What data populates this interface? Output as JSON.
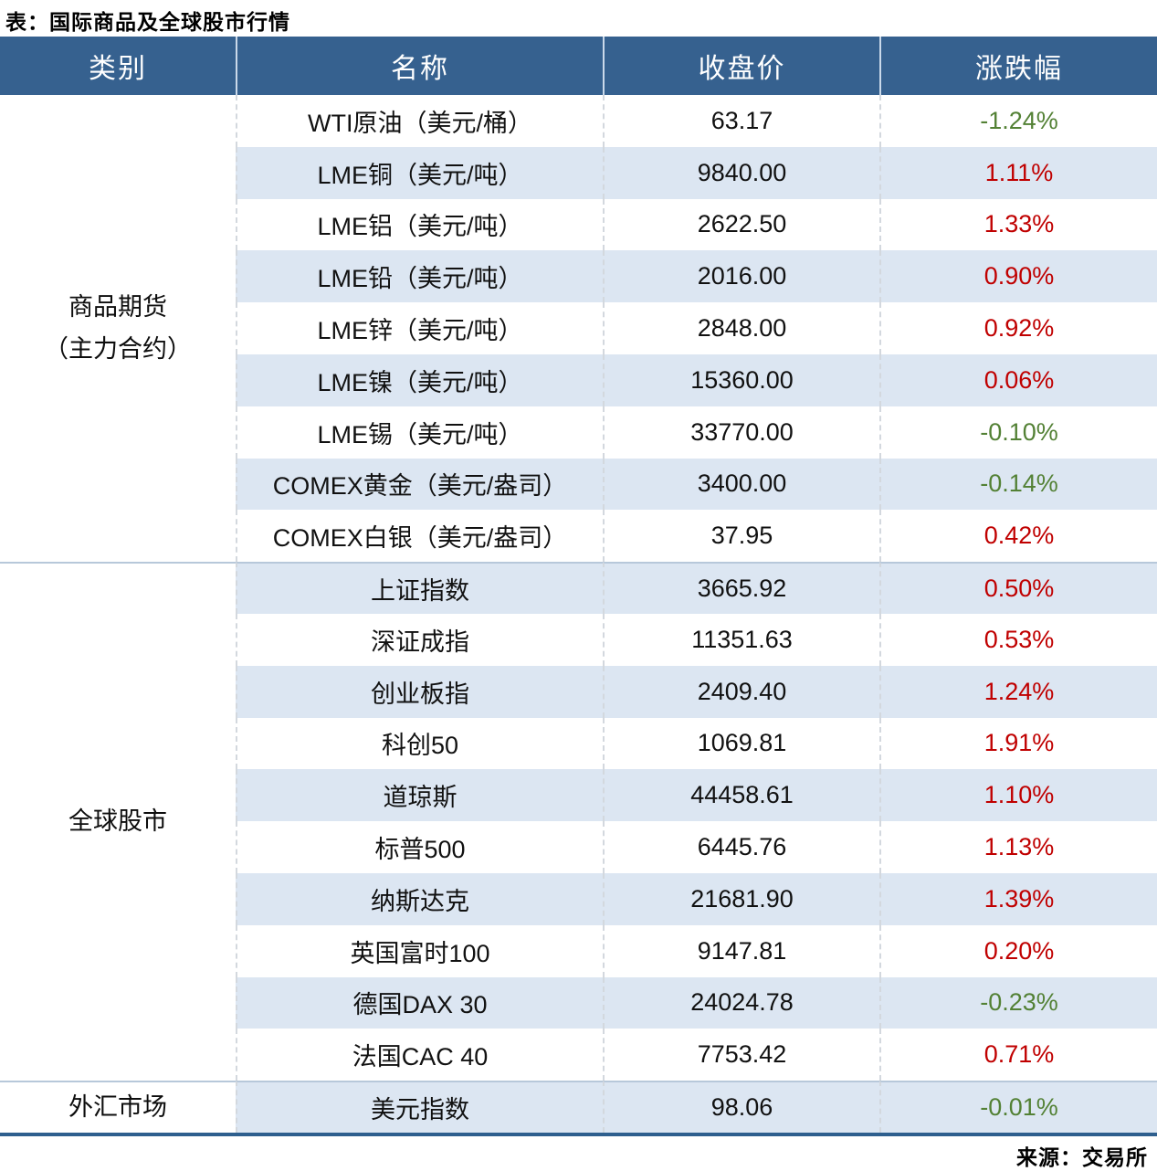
{
  "title": "表：国际商品及全球股市行情",
  "source": "来源：交易所",
  "colors": {
    "header_bg": "#36618f",
    "stripe_bg": "#dce6f2",
    "row_bg": "#ffffff",
    "up_red": "#c00000",
    "down_green": "#538135",
    "bottom_border": "#2e5f8e"
  },
  "table": {
    "headers": [
      "类别",
      "名称",
      "收盘价",
      "涨跌幅"
    ],
    "groups": [
      {
        "category_lines": [
          "商品期货",
          "（主力合约）"
        ],
        "rows": [
          {
            "name": "WTI原油（美元/桶）",
            "close": "63.17",
            "change": "-1.24%",
            "direction": "down"
          },
          {
            "name": "LME铜（美元/吨）",
            "close": "9840.00",
            "change": "1.11%",
            "direction": "up"
          },
          {
            "name": "LME铝（美元/吨）",
            "close": "2622.50",
            "change": "1.33%",
            "direction": "up"
          },
          {
            "name": "LME铅（美元/吨）",
            "close": "2016.00",
            "change": "0.90%",
            "direction": "up"
          },
          {
            "name": "LME锌（美元/吨）",
            "close": "2848.00",
            "change": "0.92%",
            "direction": "up"
          },
          {
            "name": "LME镍（美元/吨）",
            "close": "15360.00",
            "change": "0.06%",
            "direction": "up"
          },
          {
            "name": "LME锡（美元/吨）",
            "close": "33770.00",
            "change": "-0.10%",
            "direction": "down"
          },
          {
            "name": "COMEX黄金（美元/盎司）",
            "close": "3400.00",
            "change": "-0.14%",
            "direction": "down"
          },
          {
            "name": "COMEX白银（美元/盎司）",
            "close": "37.95",
            "change": "0.42%",
            "direction": "up"
          }
        ]
      },
      {
        "category_lines": [
          "全球股市"
        ],
        "rows": [
          {
            "name": "上证指数",
            "close": "3665.92",
            "change": "0.50%",
            "direction": "up"
          },
          {
            "name": "深证成指",
            "close": "11351.63",
            "change": "0.53%",
            "direction": "up"
          },
          {
            "name": "创业板指",
            "close": "2409.40",
            "change": "1.24%",
            "direction": "up"
          },
          {
            "name": "科创50",
            "close": "1069.81",
            "change": "1.91%",
            "direction": "up"
          },
          {
            "name": "道琼斯",
            "close": "44458.61",
            "change": "1.10%",
            "direction": "up"
          },
          {
            "name": "标普500",
            "close": "6445.76",
            "change": "1.13%",
            "direction": "up"
          },
          {
            "name": "纳斯达克",
            "close": "21681.90",
            "change": "1.39%",
            "direction": "up"
          },
          {
            "name": "英国富时100",
            "close": "9147.81",
            "change": "0.20%",
            "direction": "up"
          },
          {
            "name": "德国DAX 30",
            "close": "24024.78",
            "change": "-0.23%",
            "direction": "down"
          },
          {
            "name": "法国CAC 40",
            "close": "7753.42",
            "change": "0.71%",
            "direction": "up"
          }
        ]
      },
      {
        "category_lines": [
          "外汇市场"
        ],
        "rows": [
          {
            "name": "美元指数",
            "close": "98.06",
            "change": "-0.01%",
            "direction": "down"
          }
        ]
      }
    ]
  }
}
